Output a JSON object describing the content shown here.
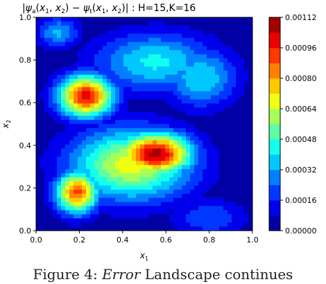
{
  "chart_data": {
    "type": "heatmap",
    "title": "|ψ_a(x_1, x_2) − ψ_t(x_1, x_2)|   :   H=15,K=16",
    "xlabel": "x_1",
    "ylabel": "x_2",
    "xlim": [
      0.0,
      1.0
    ],
    "ylim": [
      0.0,
      1.0
    ],
    "x_ticks": [
      "0.0",
      "0.2",
      "0.4",
      "0.6",
      "0.8",
      "1.0"
    ],
    "y_ticks": [
      "0.0",
      "0.2",
      "0.4",
      "0.6",
      "0.8",
      "1.0"
    ],
    "colorbar": {
      "min": 0.0,
      "max": 0.00112,
      "ticks": [
        "0.00000",
        "0.00016",
        "0.00032",
        "0.00048",
        "0.00064",
        "0.00080",
        "0.00096",
        "0.00112"
      ],
      "colormap": "jet",
      "levels": 14
    },
    "peaks": [
      {
        "x": 0.55,
        "y": 0.36,
        "value": 0.00108
      },
      {
        "x": 0.23,
        "y": 0.63,
        "value": 0.001
      },
      {
        "x": 0.19,
        "y": 0.18,
        "value": 0.0009
      },
      {
        "x": 0.44,
        "y": 0.31,
        "value": 0.00068
      },
      {
        "x": 0.55,
        "y": 0.79,
        "value": 0.00042
      },
      {
        "x": 0.76,
        "y": 0.72,
        "value": 0.0004
      },
      {
        "x": 0.1,
        "y": 0.93,
        "value": 0.00034
      },
      {
        "x": 0.8,
        "y": 0.06,
        "value": 0.00024
      },
      {
        "x": 0.87,
        "y": 0.94,
        "value": 8e-05
      }
    ]
  },
  "caption": {
    "prefix": "Figure 4: ",
    "emphasis": "Error",
    "rest": " Landscape continues"
  }
}
